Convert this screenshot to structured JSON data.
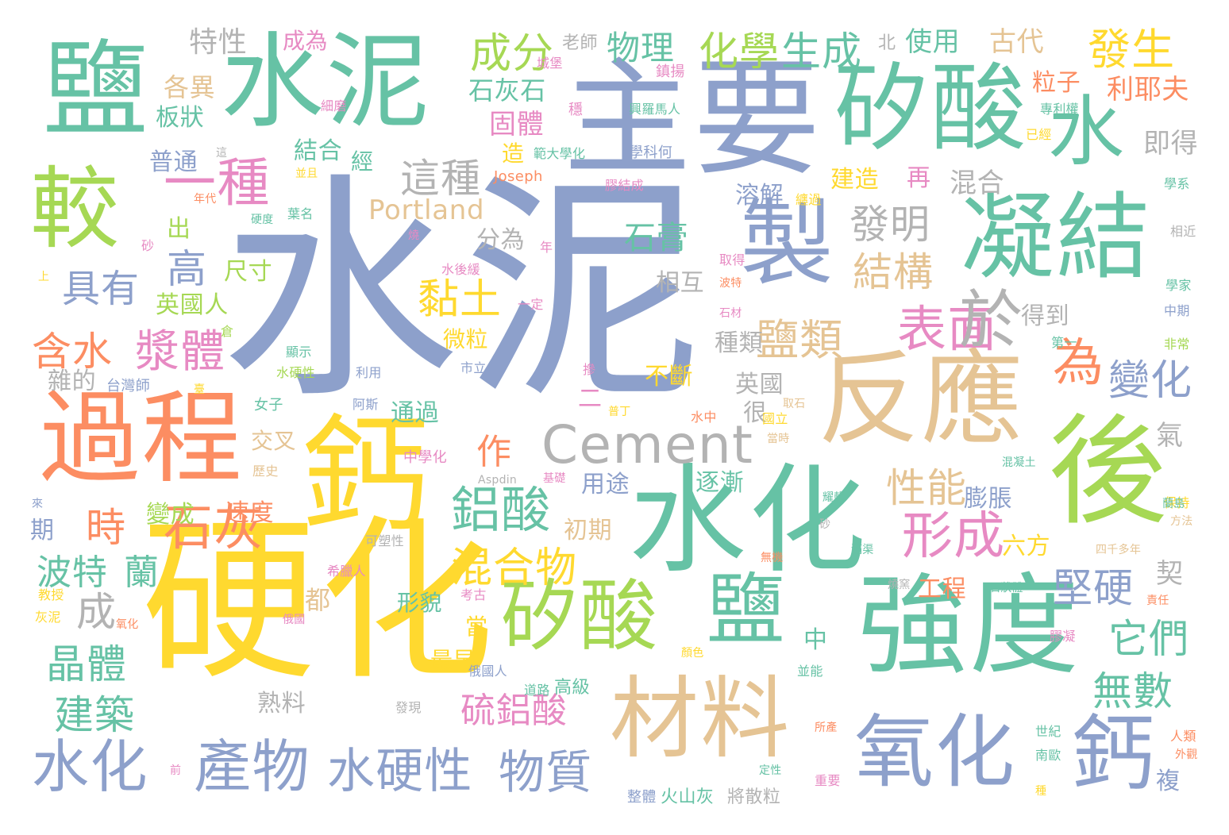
{
  "palette": {
    "blue": "#8da0cb",
    "teal": "#66c2a5",
    "orange": "#fc8d62",
    "pink": "#e78ac3",
    "green": "#a6d854",
    "yellow": "#ffd92f",
    "tan": "#e5c494",
    "gray": "#b3b3b3"
  },
  "words": [
    {
      "text": "水泥",
      "color": "blue"
    },
    {
      "text": "硬化",
      "color": "yellow"
    },
    {
      "text": "主要",
      "color": "blue"
    },
    {
      "text": "水化",
      "color": "teal"
    },
    {
      "text": "鈣",
      "color": "yellow"
    },
    {
      "text": "強度",
      "color": "teal"
    },
    {
      "text": "反應",
      "color": "tan"
    },
    {
      "text": "矽酸",
      "color": "teal"
    },
    {
      "text": "後",
      "color": "green"
    },
    {
      "text": "水泥",
      "color": "teal"
    },
    {
      "text": "鹽",
      "color": "teal"
    },
    {
      "text": "過程",
      "color": "orange"
    },
    {
      "text": "凝結",
      "color": "teal"
    },
    {
      "text": "材料",
      "color": "tan"
    },
    {
      "text": "製",
      "color": "blue"
    },
    {
      "text": "氧化",
      "color": "blue"
    },
    {
      "text": "矽酸",
      "color": "green"
    },
    {
      "text": "鹽",
      "color": "teal"
    },
    {
      "text": "較",
      "color": "green"
    },
    {
      "text": "水",
      "color": "teal"
    },
    {
      "text": "鈣",
      "color": "blue"
    },
    {
      "text": "產物",
      "color": "blue"
    },
    {
      "text": "水化",
      "color": "blue"
    },
    {
      "text": "水硬性",
      "color": "blue"
    },
    {
      "text": "Cement",
      "color": "gray"
    },
    {
      "text": "鋁酸",
      "color": "teal"
    },
    {
      "text": "石灰",
      "color": "orange"
    },
    {
      "text": "形成",
      "color": "pink"
    },
    {
      "text": "物質",
      "color": "blue"
    },
    {
      "text": "一種",
      "color": "pink"
    },
    {
      "text": "表面",
      "color": "pink"
    },
    {
      "text": "混合物",
      "color": "yellow"
    },
    {
      "text": "成分",
      "color": "green"
    },
    {
      "text": "發生",
      "color": "yellow"
    },
    {
      "text": "化學",
      "color": "green"
    },
    {
      "text": "生成",
      "color": "teal"
    },
    {
      "text": "物理",
      "color": "teal"
    },
    {
      "text": "這種",
      "color": "gray"
    },
    {
      "text": "發明",
      "color": "gray"
    },
    {
      "text": "結構",
      "color": "tan"
    },
    {
      "text": "鹽類",
      "color": "tan"
    },
    {
      "text": "於",
      "color": "gray"
    },
    {
      "text": "為",
      "color": "orange"
    },
    {
      "text": "變化",
      "color": "blue"
    },
    {
      "text": "漿體",
      "color": "pink"
    },
    {
      "text": "含水",
      "color": "orange"
    },
    {
      "text": "黏土",
      "color": "yellow"
    },
    {
      "text": "性能",
      "color": "tan"
    },
    {
      "text": "堅硬",
      "color": "blue"
    },
    {
      "text": "它們",
      "color": "teal"
    },
    {
      "text": "無數",
      "color": "teal"
    },
    {
      "text": "晶體",
      "color": "teal"
    },
    {
      "text": "建築",
      "color": "teal"
    },
    {
      "text": "硫鋁酸",
      "color": "pink"
    },
    {
      "text": "具有",
      "color": "blue"
    },
    {
      "text": "高",
      "color": "blue"
    },
    {
      "text": "時",
      "color": "orange"
    },
    {
      "text": "波特",
      "color": "teal"
    },
    {
      "text": "蘭",
      "color": "teal"
    },
    {
      "text": "石膏",
      "color": "teal"
    },
    {
      "text": "Portland",
      "color": "tan"
    },
    {
      "text": "成",
      "color": "gray"
    },
    {
      "text": "作",
      "color": "orange"
    },
    {
      "text": "特性",
      "color": "gray"
    },
    {
      "text": "成為",
      "color": "pink"
    },
    {
      "text": "使用",
      "color": "teal"
    },
    {
      "text": "古代",
      "color": "tan"
    },
    {
      "text": "北",
      "color": "gray"
    },
    {
      "text": "老師",
      "color": "gray"
    },
    {
      "text": "石灰石",
      "color": "teal"
    },
    {
      "text": "固體",
      "color": "pink"
    },
    {
      "text": "粒子",
      "color": "orange"
    },
    {
      "text": "利耶夫",
      "color": "orange"
    },
    {
      "text": "各異",
      "color": "tan"
    },
    {
      "text": "板狀",
      "color": "teal"
    },
    {
      "text": "結合",
      "color": "teal"
    },
    {
      "text": "經",
      "color": "teal"
    },
    {
      "text": "普通",
      "color": "blue"
    },
    {
      "text": "造",
      "color": "yellow"
    },
    {
      "text": "即得",
      "color": "gray"
    },
    {
      "text": "混合",
      "color": "gray"
    },
    {
      "text": "再",
      "color": "pink"
    },
    {
      "text": "建造",
      "color": "yellow"
    },
    {
      "text": "溶解",
      "color": "blue"
    },
    {
      "text": "分為",
      "color": "gray"
    },
    {
      "text": "尺寸",
      "color": "green"
    },
    {
      "text": "出",
      "color": "green"
    },
    {
      "text": "英國人",
      "color": "green"
    },
    {
      "text": "相互",
      "color": "gray"
    },
    {
      "text": "微粒",
      "color": "yellow"
    },
    {
      "text": "種類",
      "color": "gray"
    },
    {
      "text": "得到",
      "color": "gray"
    },
    {
      "text": "英國",
      "color": "gray"
    },
    {
      "text": "雜的",
      "color": "gray"
    },
    {
      "text": "不斷",
      "color": "yellow"
    },
    {
      "text": "很",
      "color": "gray"
    },
    {
      "text": "通過",
      "color": "teal"
    },
    {
      "text": "交叉",
      "color": "tan"
    },
    {
      "text": "逐漸",
      "color": "teal"
    },
    {
      "text": "膨脹",
      "color": "blue"
    },
    {
      "text": "六方",
      "color": "yellow"
    },
    {
      "text": "氣",
      "color": "gray"
    },
    {
      "text": "用途",
      "color": "blue"
    },
    {
      "text": "變成",
      "color": "green"
    },
    {
      "text": "速度",
      "color": "orange"
    },
    {
      "text": "初期",
      "color": "tan"
    },
    {
      "text": "期",
      "color": "blue"
    },
    {
      "text": "契",
      "color": "gray"
    },
    {
      "text": "工程",
      "color": "orange"
    },
    {
      "text": "都",
      "color": "tan"
    },
    {
      "text": "形貌",
      "color": "teal"
    },
    {
      "text": "當",
      "color": "yellow"
    },
    {
      "text": "最早",
      "color": "yellow"
    },
    {
      "text": "中",
      "color": "teal"
    },
    {
      "text": "熟料",
      "color": "gray"
    },
    {
      "text": "高級",
      "color": "teal"
    },
    {
      "text": "複",
      "color": "blue"
    },
    {
      "text": "二",
      "color": "pink"
    },
    {
      "text": "火山灰",
      "color": "teal"
    },
    {
      "text": "將散粒",
      "color": "gray"
    }
  ],
  "small_words": [
    {
      "text": "城堡",
      "color": "pink"
    },
    {
      "text": "鎮揚",
      "color": "pink"
    },
    {
      "text": "細磨",
      "color": "pink"
    },
    {
      "text": "穩",
      "color": "pink"
    },
    {
      "text": "興羅馬人",
      "color": "teal"
    },
    {
      "text": "專利權",
      "color": "teal"
    },
    {
      "text": "已經",
      "color": "yellow"
    },
    {
      "text": "範大學化",
      "color": "teal"
    },
    {
      "text": "學科何",
      "color": "blue"
    },
    {
      "text": "Joseph",
      "color": "orange"
    },
    {
      "text": "這",
      "color": "gray"
    },
    {
      "text": "並且",
      "color": "yellow"
    },
    {
      "text": "膠結成",
      "color": "pink"
    },
    {
      "text": "學系",
      "color": "teal"
    },
    {
      "text": "年代",
      "color": "orange"
    },
    {
      "text": "硬度",
      "color": "teal"
    },
    {
      "text": "葉名",
      "color": "teal"
    },
    {
      "text": "纏過",
      "color": "yellow"
    },
    {
      "text": "相近",
      "color": "gray"
    },
    {
      "text": "砂",
      "color": "pink"
    },
    {
      "text": "燒",
      "color": "pink"
    },
    {
      "text": "年",
      "color": "pink"
    },
    {
      "text": "上",
      "color": "yellow"
    },
    {
      "text": "水後緩",
      "color": "pink"
    },
    {
      "text": "取得",
      "color": "pink"
    },
    {
      "text": "波特",
      "color": "orange"
    },
    {
      "text": "學家",
      "color": "teal"
    },
    {
      "text": "中期",
      "color": "blue"
    },
    {
      "text": "一定",
      "color": "pink"
    },
    {
      "text": "石材",
      "color": "pink"
    },
    {
      "text": "倉",
      "color": "green"
    },
    {
      "text": "顯示",
      "color": "teal"
    },
    {
      "text": "第一",
      "color": "teal"
    },
    {
      "text": "非常",
      "color": "green"
    },
    {
      "text": "水硬性",
      "color": "green"
    },
    {
      "text": "利用",
      "color": "blue"
    },
    {
      "text": "市立",
      "color": "blue"
    },
    {
      "text": "台灣師",
      "color": "blue"
    },
    {
      "text": "臺",
      "color": "yellow"
    },
    {
      "text": "摻",
      "color": "pink"
    },
    {
      "text": "阿斯",
      "color": "blue"
    },
    {
      "text": "普丁",
      "color": "yellow"
    },
    {
      "text": "水中",
      "color": "orange"
    },
    {
      "text": "取石",
      "color": "tan"
    },
    {
      "text": "女子",
      "color": "teal"
    },
    {
      "text": "國立",
      "color": "yellow"
    },
    {
      "text": "當時",
      "color": "tan"
    },
    {
      "text": "歷史",
      "color": "tan"
    },
    {
      "text": "中學化",
      "color": "pink"
    },
    {
      "text": "Aspdin",
      "color": "gray"
    },
    {
      "text": "基礎",
      "color": "pink"
    },
    {
      "text": "混凝土",
      "color": "teal"
    },
    {
      "text": "保持",
      "color": "yellow"
    },
    {
      "text": "來",
      "color": "blue"
    },
    {
      "text": "耀輯",
      "color": "teal"
    },
    {
      "text": "蘭島",
      "color": "teal"
    },
    {
      "text": "方法",
      "color": "tan"
    },
    {
      "text": "可塑性",
      "color": "gray"
    },
    {
      "text": "砂",
      "color": "gray"
    },
    {
      "text": "滿渠",
      "color": "teal"
    },
    {
      "text": "四千多年",
      "color": "tan"
    },
    {
      "text": "希臘人",
      "color": "pink"
    },
    {
      "text": "無機",
      "color": "orange"
    },
    {
      "text": "石狀體",
      "color": "teal"
    },
    {
      "text": "教授",
      "color": "yellow"
    },
    {
      "text": "考古",
      "color": "pink"
    },
    {
      "text": "燒窯",
      "color": "gray"
    },
    {
      "text": "責任",
      "color": "orange"
    },
    {
      "text": "灰泥",
      "color": "yellow"
    },
    {
      "text": "氧化",
      "color": "orange"
    },
    {
      "text": "俄國",
      "color": "pink"
    },
    {
      "text": "膠凝",
      "color": "pink"
    },
    {
      "text": "俄國人",
      "color": "blue"
    },
    {
      "text": "顏色",
      "color": "yellow"
    },
    {
      "text": "並能",
      "color": "teal"
    },
    {
      "text": "道路",
      "color": "teal"
    },
    {
      "text": "發現",
      "color": "gray"
    },
    {
      "text": "所產",
      "color": "orange"
    },
    {
      "text": "世紀",
      "color": "teal"
    },
    {
      "text": "人類",
      "color": "orange"
    },
    {
      "text": "外觀",
      "color": "orange"
    },
    {
      "text": "前",
      "color": "pink"
    },
    {
      "text": "定性",
      "color": "teal"
    },
    {
      "text": "南歐",
      "color": "teal"
    },
    {
      "text": "重要",
      "color": "pink"
    },
    {
      "text": "整體",
      "color": "blue"
    },
    {
      "text": "種",
      "color": "yellow"
    }
  ]
}
